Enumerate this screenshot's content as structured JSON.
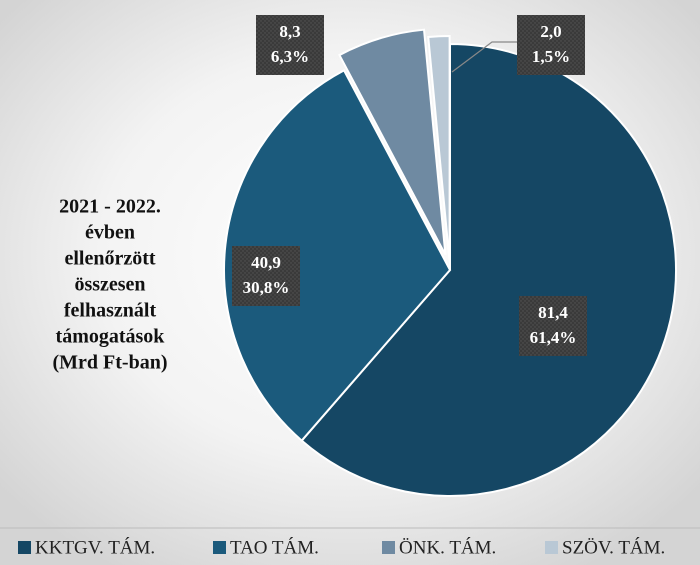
{
  "chart_data": {
    "type": "pie",
    "title": [
      "2021 - 2022.",
      "évben",
      "ellenőrzött",
      "összesen",
      "felhasznált",
      "támogatások",
      "(Mrd Ft-ban)"
    ],
    "categories": [
      "KKTGV. TÁM.",
      "TAO TÁM.",
      "ÖNK. TÁM.",
      "SZÖV. TÁM."
    ],
    "values": [
      81.4,
      40.9,
      8.3,
      2.0
    ],
    "value_labels": [
      "81,4",
      "40,9",
      "8,3",
      "2,0"
    ],
    "percentages": [
      61.4,
      30.8,
      6.3,
      1.5
    ],
    "percentage_labels": [
      "61,4%",
      "30,8%",
      "6,3%",
      "1,5%"
    ],
    "colors": [
      "#154764",
      "#1b5a7c",
      "#6f8aa2",
      "#b9c8d5"
    ],
    "legend": "bottom"
  }
}
